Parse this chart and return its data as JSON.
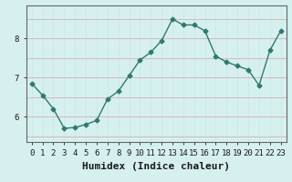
{
  "x": [
    0,
    1,
    2,
    3,
    4,
    5,
    6,
    7,
    8,
    9,
    10,
    11,
    12,
    13,
    14,
    15,
    16,
    17,
    18,
    19,
    20,
    21,
    22,
    23
  ],
  "y": [
    6.85,
    6.55,
    6.2,
    5.7,
    5.72,
    5.8,
    5.9,
    6.45,
    6.65,
    7.05,
    7.45,
    7.65,
    7.95,
    8.5,
    8.35,
    8.35,
    8.2,
    7.55,
    7.4,
    7.3,
    7.2,
    6.8,
    7.7,
    8.2
  ],
  "line_color": "#2e7b6e",
  "marker": "D",
  "marker_size": 2.5,
  "bg_color": "#d6f0ef",
  "grid_color": "#b8d8d6",
  "xlabel": "Humidex (Indice chaleur)",
  "ylabel": "",
  "xlim": [
    -0.5,
    23.5
  ],
  "ylim": [
    5.35,
    8.85
  ],
  "yticks": [
    6,
    7,
    8
  ],
  "xticks": [
    0,
    1,
    2,
    3,
    4,
    5,
    6,
    7,
    8,
    9,
    10,
    11,
    12,
    13,
    14,
    15,
    16,
    17,
    18,
    19,
    20,
    21,
    22,
    23
  ],
  "title": "",
  "tick_fontsize": 6.5,
  "xlabel_fontsize": 8,
  "line_width": 1.0,
  "axis_color": "#666666",
  "red_grid_color": "#d08080"
}
